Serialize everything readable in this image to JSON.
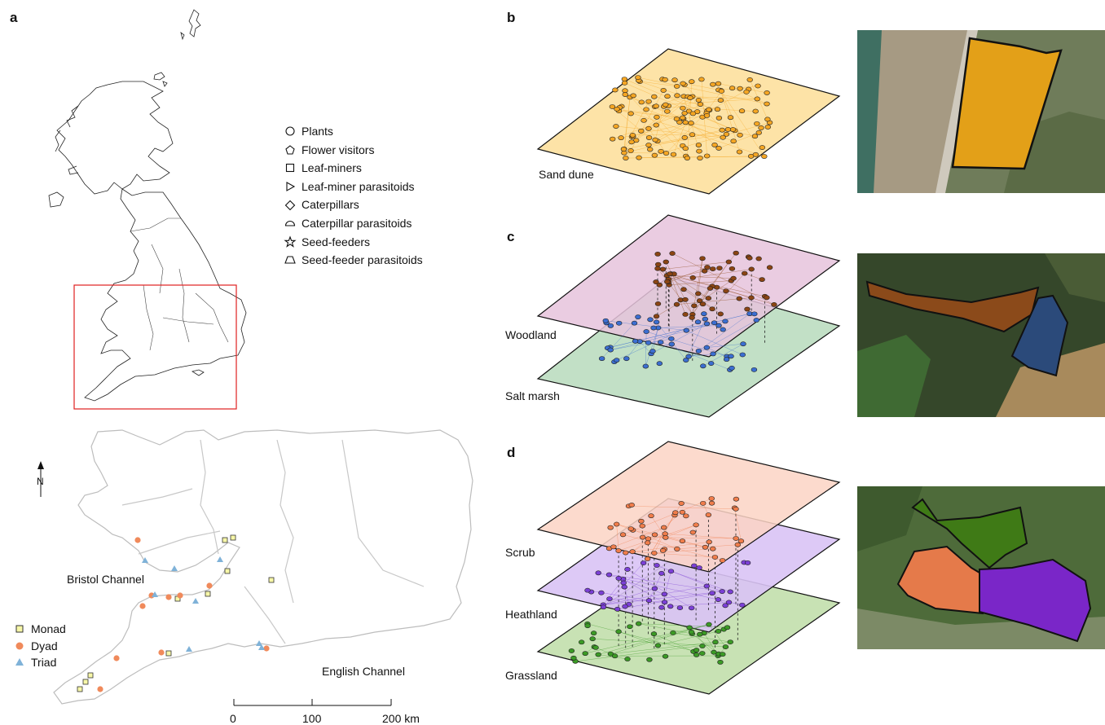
{
  "panels": {
    "a": "a",
    "b": "b",
    "c": "c",
    "d": "d"
  },
  "guild_legend": [
    {
      "label": "Plants",
      "icon": "circle-icon"
    },
    {
      "label": "Flower visitors",
      "icon": "pentagon-icon"
    },
    {
      "label": "Leaf-miners",
      "icon": "square-icon"
    },
    {
      "label": "Leaf-miner parasitoids",
      "icon": "triangle-right-icon"
    },
    {
      "label": "Caterpillars",
      "icon": "diamond-icon"
    },
    {
      "label": "Caterpillar parasitoids",
      "icon": "half-circle-icon"
    },
    {
      "label": "Seed-feeders",
      "icon": "star-icon"
    },
    {
      "label": "Seed-feeder parasitoids",
      "icon": "trapezoid-icon"
    }
  ],
  "site_legend": [
    {
      "label": "Monad",
      "icon": "square-icon",
      "color": "#f7f7a8"
    },
    {
      "label": "Dyad",
      "icon": "circle-icon",
      "color": "#f08a5b"
    },
    {
      "label": "Triad",
      "icon": "triangle-icon",
      "color": "#7fb2d8"
    }
  ],
  "map": {
    "north": "N",
    "bristol_channel": "Bristol Channel",
    "english_channel": "English Channel",
    "scale_ticks": [
      "0",
      "100",
      "200 km"
    ],
    "inset_color": "#e02020"
  },
  "habitats": {
    "sand_dune": {
      "label": "Sand dune",
      "color": "#fde3a7",
      "node": "#f5a623"
    },
    "woodland": {
      "label": "Woodland",
      "color": "#e6c3dc",
      "node": "#8b4513"
    },
    "salt_marsh": {
      "label": "Salt marsh",
      "color": "#c2e0c6",
      "node": "#3b6ed1"
    },
    "scrub": {
      "label": "Scrub",
      "color": "#fcd3c4",
      "node": "#f07d4b"
    },
    "heathland": {
      "label": "Heathland",
      "color": "#d9c3f5",
      "node": "#7b3fd6"
    },
    "grassland": {
      "label": "Grassland",
      "color": "#c8e2b4",
      "node": "#3b9a25"
    }
  }
}
